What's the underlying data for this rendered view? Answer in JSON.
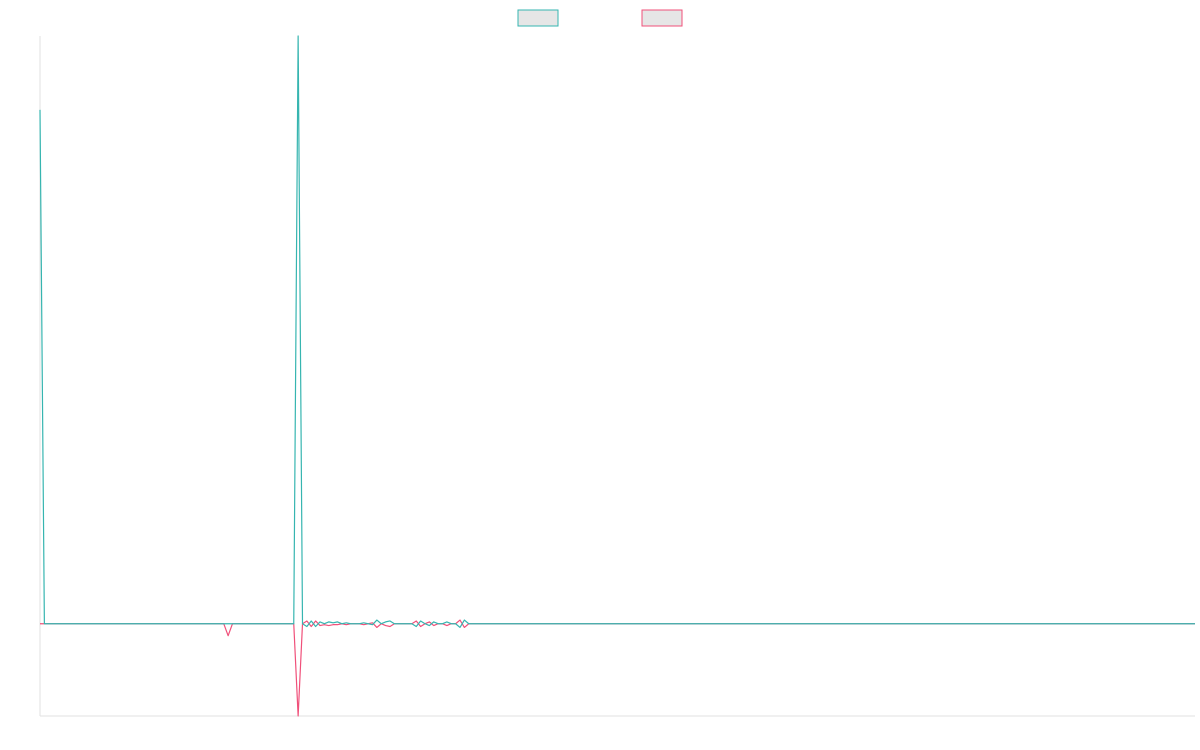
{
  "chart_data": {
    "type": "line",
    "title": "",
    "xlabel": "",
    "ylabel": "",
    "grid": false,
    "legend": {
      "position": "top-center",
      "entries": [
        {
          "name": "",
          "color": "#36b5b0"
        },
        {
          "name": "",
          "color": "#f0507a"
        }
      ]
    },
    "xlim": [
      0,
      264
    ],
    "ylim": [
      -100,
      637
    ],
    "series": [
      {
        "name": "",
        "color": "#36b5b0",
        "points": [
          [
            0,
            557
          ],
          [
            1,
            0
          ],
          [
            2,
            0
          ],
          [
            42,
            0
          ],
          [
            43,
            0
          ],
          [
            44,
            0
          ],
          [
            57,
            0
          ],
          [
            58,
            0
          ],
          [
            59,
            637
          ],
          [
            60,
            0
          ],
          [
            61,
            -3
          ],
          [
            62,
            3
          ],
          [
            63,
            -3
          ],
          [
            64,
            2
          ],
          [
            65,
            0
          ],
          [
            66,
            2
          ],
          [
            67,
            1
          ],
          [
            68,
            2
          ],
          [
            69,
            0
          ],
          [
            70,
            1
          ],
          [
            71,
            0
          ],
          [
            72,
            0
          ],
          [
            73,
            0
          ],
          [
            74,
            1
          ],
          [
            75,
            0
          ],
          [
            76,
            -1
          ],
          [
            77,
            4
          ],
          [
            78,
            0
          ],
          [
            79,
            2
          ],
          [
            80,
            3
          ],
          [
            81,
            0
          ],
          [
            82,
            0
          ],
          [
            83,
            0
          ],
          [
            84,
            0
          ],
          [
            85,
            0
          ],
          [
            86,
            -3
          ],
          [
            87,
            3
          ],
          [
            88,
            0
          ],
          [
            89,
            -2
          ],
          [
            90,
            2
          ],
          [
            91,
            0
          ],
          [
            92,
            0
          ],
          [
            93,
            2
          ],
          [
            94,
            0
          ],
          [
            95,
            0
          ],
          [
            96,
            -4
          ],
          [
            97,
            4
          ],
          [
            98,
            0
          ],
          [
            99,
            0
          ],
          [
            100,
            0
          ],
          [
            264,
            0
          ]
        ]
      },
      {
        "name": "",
        "color": "#f0507a",
        "points": [
          [
            0,
            0
          ],
          [
            1,
            0
          ],
          [
            2,
            0
          ],
          [
            42,
            0
          ],
          [
            43,
            -13
          ],
          [
            44,
            0
          ],
          [
            57,
            0
          ],
          [
            58,
            0
          ],
          [
            59,
            -100
          ],
          [
            60,
            0
          ],
          [
            61,
            3
          ],
          [
            62,
            -3
          ],
          [
            63,
            3
          ],
          [
            64,
            -2
          ],
          [
            65,
            -1
          ],
          [
            66,
            -2
          ],
          [
            67,
            -1
          ],
          [
            68,
            -1
          ],
          [
            69,
            0
          ],
          [
            70,
            -1
          ],
          [
            71,
            0
          ],
          [
            72,
            0
          ],
          [
            73,
            0
          ],
          [
            74,
            -1
          ],
          [
            75,
            0
          ],
          [
            76,
            1
          ],
          [
            77,
            -4
          ],
          [
            78,
            0
          ],
          [
            79,
            -2
          ],
          [
            80,
            -3
          ],
          [
            81,
            0
          ],
          [
            82,
            0
          ],
          [
            83,
            0
          ],
          [
            84,
            0
          ],
          [
            85,
            0
          ],
          [
            86,
            3
          ],
          [
            87,
            -3
          ],
          [
            88,
            0
          ],
          [
            89,
            2
          ],
          [
            90,
            -2
          ],
          [
            91,
            0
          ],
          [
            92,
            0
          ],
          [
            93,
            -2
          ],
          [
            94,
            0
          ],
          [
            95,
            0
          ],
          [
            96,
            4
          ],
          [
            97,
            -4
          ],
          [
            98,
            0
          ],
          [
            99,
            0
          ],
          [
            100,
            0
          ],
          [
            264,
            0
          ]
        ]
      }
    ]
  }
}
